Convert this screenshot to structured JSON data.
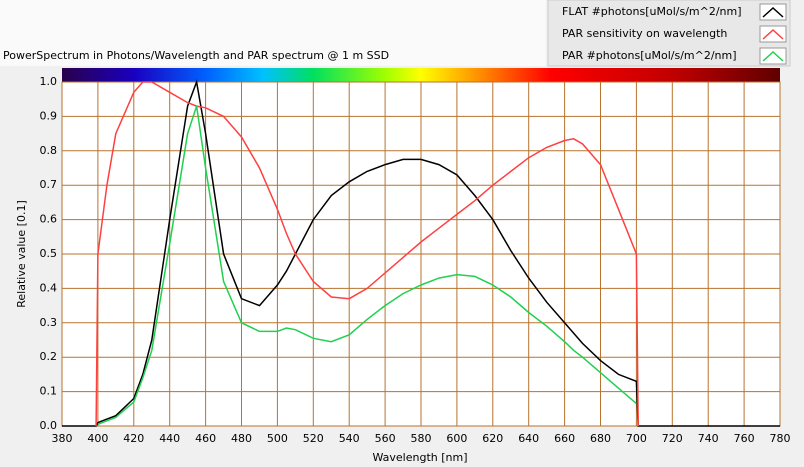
{
  "chart_data": {
    "type": "line",
    "title": "PowerSpectrum in Photons/Wavelength and PAR spectrum @ 1 m SSD",
    "x_label": "Wavelength [nm]",
    "y_label": "Relative value [0.1]",
    "x": [
      380,
      390,
      399,
      400,
      405,
      410,
      420,
      425,
      430,
      440,
      450,
      455,
      460,
      470,
      480,
      490,
      500,
      505,
      510,
      520,
      530,
      540,
      550,
      560,
      570,
      580,
      590,
      600,
      610,
      620,
      630,
      640,
      650,
      660,
      665,
      670,
      680,
      690,
      700,
      701,
      710,
      720,
      730,
      740,
      750,
      760,
      770,
      780
    ],
    "series": [
      {
        "name": "FLAT #photons[uMol/s/m^2/nm]",
        "color": "#000000",
        "values": [
          0,
          0,
          0,
          0.01,
          0.02,
          0.03,
          0.08,
          0.15,
          0.25,
          0.6,
          0.93,
          1.0,
          0.85,
          0.5,
          0.37,
          0.35,
          0.41,
          0.45,
          0.5,
          0.6,
          0.67,
          0.71,
          0.74,
          0.76,
          0.775,
          0.775,
          0.76,
          0.73,
          0.67,
          0.6,
          0.51,
          0.43,
          0.36,
          0.3,
          0.27,
          0.24,
          0.19,
          0.15,
          0.13,
          0,
          0,
          0,
          0,
          0,
          0,
          0,
          0,
          0
        ]
      },
      {
        "name": "PAR sensitivity on wavelength",
        "color": "#ff4040",
        "values": [
          null,
          null,
          0,
          0.5,
          0.7,
          0.85,
          0.97,
          1.0,
          1.0,
          0.97,
          0.94,
          0.93,
          0.925,
          0.9,
          0.84,
          0.75,
          0.63,
          0.56,
          0.5,
          0.42,
          0.375,
          0.37,
          0.4,
          0.445,
          0.49,
          0.535,
          0.575,
          0.615,
          0.655,
          0.7,
          0.74,
          0.78,
          0.81,
          0.83,
          0.835,
          0.82,
          0.76,
          0.63,
          0.5,
          0,
          null,
          null,
          null,
          null,
          null,
          null,
          null,
          null
        ]
      },
      {
        "name": "PAR #photons[uMol/s/m^2/nm]",
        "color": "#20d050",
        "values": [
          null,
          null,
          null,
          0.005,
          0.015,
          0.025,
          0.07,
          0.14,
          0.22,
          0.53,
          0.85,
          0.93,
          0.75,
          0.42,
          0.3,
          0.275,
          0.275,
          0.285,
          0.28,
          0.255,
          0.245,
          0.265,
          0.31,
          0.35,
          0.385,
          0.41,
          0.43,
          0.44,
          0.435,
          0.41,
          0.375,
          0.33,
          0.29,
          0.245,
          0.22,
          0.2,
          0.155,
          0.11,
          0.065,
          null,
          null,
          null,
          null,
          null,
          null,
          null,
          null,
          null
        ]
      }
    ],
    "xlim": [
      380,
      780
    ],
    "ylim": [
      0,
      1
    ],
    "xticks": [
      380,
      400,
      420,
      440,
      460,
      480,
      500,
      520,
      540,
      560,
      580,
      600,
      620,
      640,
      660,
      680,
      700,
      720,
      740,
      760,
      780
    ],
    "yticks": [
      {
        "value": 0,
        "label": "0.0"
      },
      0.1,
      0.2,
      0.3,
      0.4,
      0.5,
      0.6,
      0.7,
      0.8,
      0.9,
      {
        "value": 1,
        "label": "1.0"
      }
    ],
    "grid": true,
    "grid_color": "#b8732e",
    "legend": "top-right"
  }
}
